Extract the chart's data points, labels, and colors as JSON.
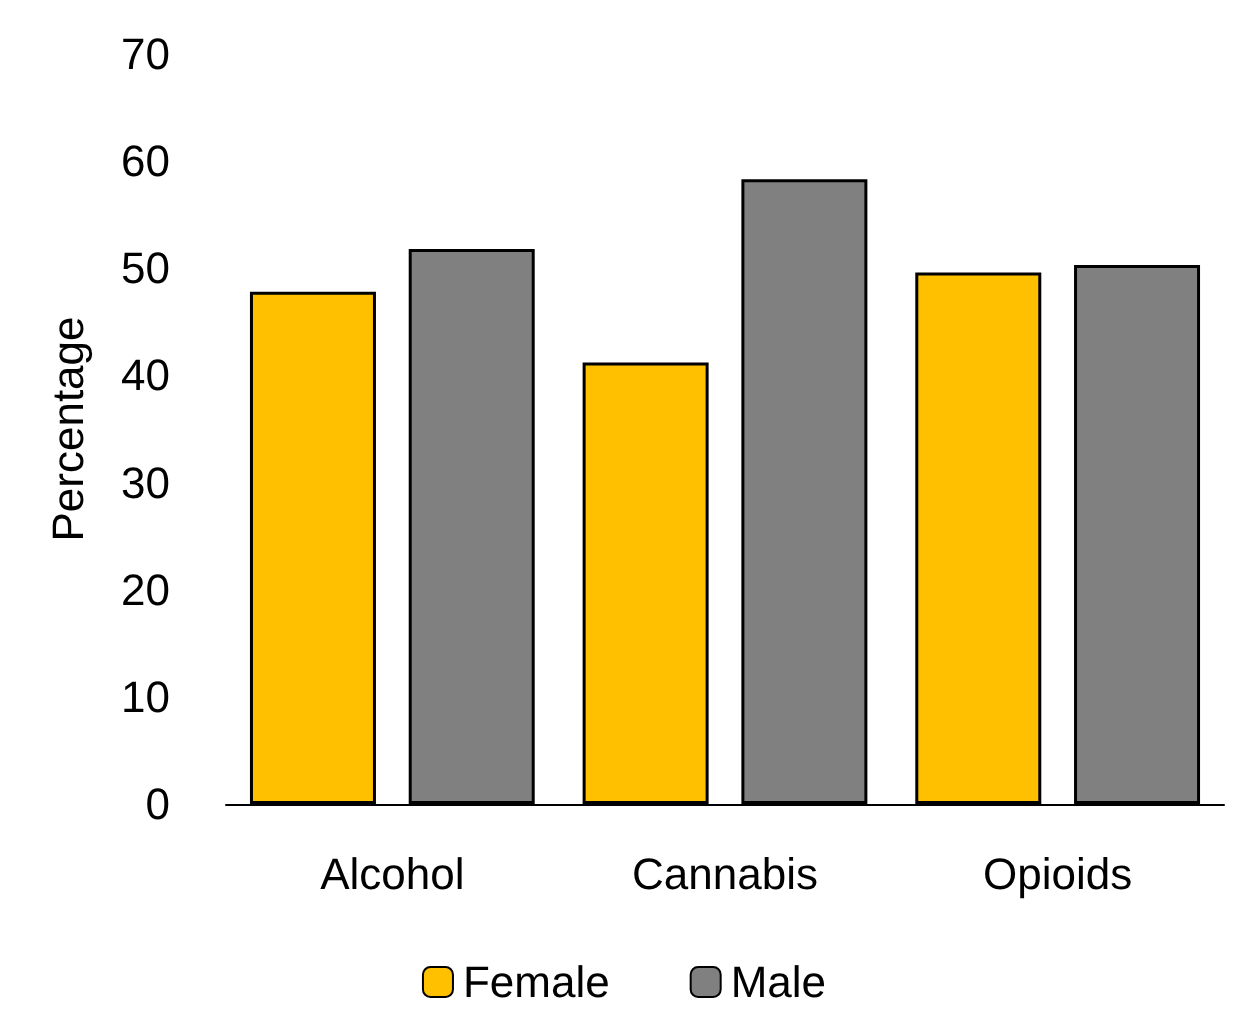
{
  "chart_data": {
    "type": "bar",
    "ylabel": "Percentage",
    "categories": [
      "Alcohol",
      "Cannabis",
      "Opioids"
    ],
    "series": [
      {
        "name": "Female",
        "color": "#ffc000",
        "values": [
          47.8,
          41.2,
          49.6
        ]
      },
      {
        "name": "Male",
        "color": "#808080",
        "values": [
          51.8,
          58.3,
          50.3
        ]
      }
    ],
    "ylim": [
      0,
      70
    ],
    "yticks": [
      0,
      10,
      20,
      30,
      40,
      50,
      60,
      70
    ],
    "grid": false,
    "legend": "bottom"
  }
}
